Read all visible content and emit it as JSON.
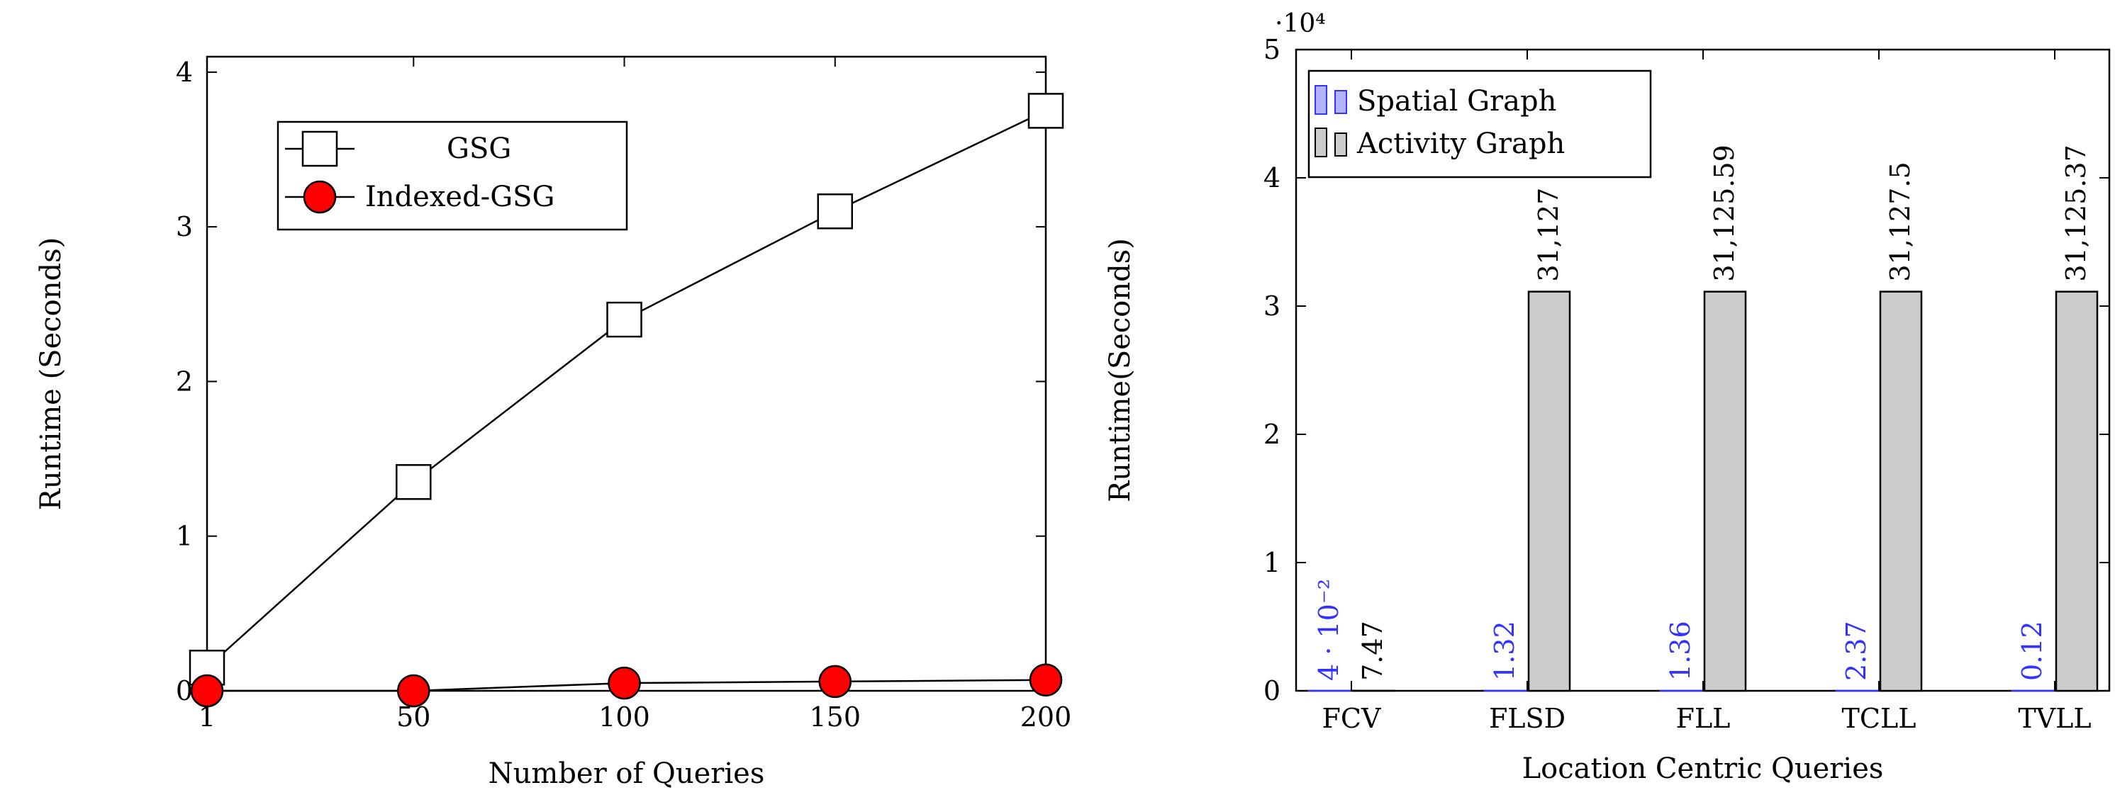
{
  "chart_data": [
    {
      "type": "line",
      "x": [
        1,
        50,
        100,
        150,
        200
      ],
      "series": [
        {
          "name": "GSG",
          "values": [
            0.15,
            1.35,
            2.4,
            3.1,
            3.75
          ],
          "marker": "square",
          "color": "#ffffff"
        },
        {
          "name": "Indexed-GSG",
          "values": [
            0.0,
            0.0,
            0.05,
            0.06,
            0.07
          ],
          "marker": "circle",
          "color": "#ff0000"
        }
      ],
      "xlabel": "Number of Queries",
      "ylabel": "Runtime (Seconds)",
      "xlim": [
        1,
        200
      ],
      "ylim": [
        0,
        4.1
      ],
      "xticks": [
        "1",
        "50",
        "100",
        "150",
        "200"
      ],
      "yticks": [
        "0",
        "1",
        "2",
        "3",
        "4"
      ],
      "legend_position": "top-left"
    },
    {
      "type": "bar",
      "categories": [
        "FCV",
        "FLSD",
        "FLL",
        "TCLL",
        "TVLL"
      ],
      "series": [
        {
          "name": "Spatial Graph",
          "values": [
            0.04,
            1.32,
            1.36,
            2.37,
            0.12
          ],
          "labels": [
            "4 · 10⁻²",
            "1.32",
            "1.36",
            "2.37",
            "0.12"
          ],
          "color": "#3333ff"
        },
        {
          "name": "Activity Graph",
          "values": [
            7.47,
            31127,
            31125.59,
            31127.5,
            31125.37
          ],
          "labels": [
            "7.47",
            "31,127",
            "31,125.59",
            "31,127.5",
            "31,125.37"
          ],
          "color": "#cccccc"
        }
      ],
      "xlabel": "Location Centric Queries",
      "ylabel": "Runtime(Seconds)",
      "ylim": [
        0,
        50000
      ],
      "yticks": [
        "0",
        "1",
        "2",
        "3",
        "4",
        "5"
      ],
      "yscale_label": "·10⁴",
      "legend_position": "top-left"
    }
  ]
}
